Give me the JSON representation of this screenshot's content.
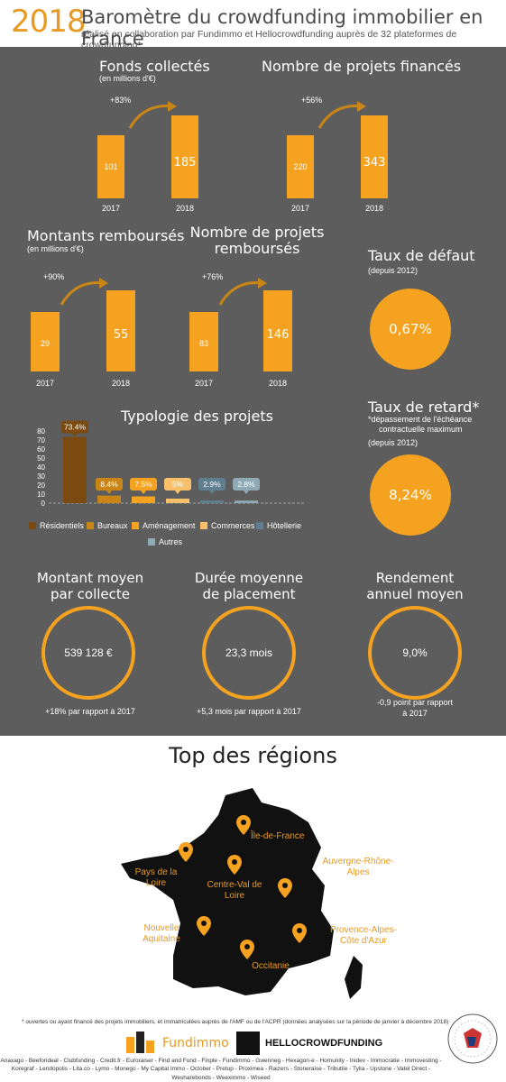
{
  "header": {
    "year": "2018",
    "title": "Baromètre du crowdfunding immobilier en France",
    "subtitle": "réalisé en collaboration par Fundimmo et Hellocrowdfunding auprès de 32 plateformes de crowdfunding*"
  },
  "funds": {
    "title": "Fonds collectés",
    "unit": "(en millions d'€)",
    "growth": "+83%",
    "bars": [
      {
        "year": "2017",
        "value": 101,
        "label": "101"
      },
      {
        "year": "2018",
        "value": 185,
        "label": "185"
      }
    ]
  },
  "projects": {
    "title": "Nombre de projets financés",
    "growth": "+56%",
    "bars": [
      {
        "year": "2017",
        "value": 220,
        "label": "220"
      },
      {
        "year": "2018",
        "value": 343,
        "label": "343"
      }
    ]
  },
  "repaid_amount": {
    "title": "Montants remboursés",
    "unit": "(en millions d'€)",
    "growth": "+90%",
    "bars": [
      {
        "year": "2017",
        "value": 29,
        "label": "29"
      },
      {
        "year": "2018",
        "value": 55,
        "label": "55"
      }
    ]
  },
  "repaid_projects": {
    "title_line1": "Nombre de projets",
    "title_line2": "remboursés",
    "growth": "+76%",
    "bars": [
      {
        "year": "2017",
        "value": 83,
        "label": "83"
      },
      {
        "year": "2018",
        "value": 146,
        "label": "146"
      }
    ]
  },
  "default_rate": {
    "title": "Taux de défaut",
    "since": "(depuis 2012)",
    "value": "0,67%"
  },
  "delay_rate": {
    "title": "Taux de retard*",
    "note_line1": "*dépassement de l'échéance",
    "note_line2": "contractuelle maximum",
    "since": "(depuis 2012)",
    "value": "8,24%"
  },
  "chart_data": {
    "type": "bar",
    "title": "Typologie des projets",
    "categories": [
      "Résidentiels",
      "Bureaux",
      "Aménagement",
      "Commerces",
      "Hôtellerie",
      "Autres"
    ],
    "values": [
      73.4,
      8.4,
      7.5,
      5,
      2.9,
      2.8
    ],
    "value_labels": [
      "73.4%",
      "8.4%",
      "7.5%",
      "5%",
      "2.9%",
      "2.8%"
    ],
    "colors": [
      "#7a4a10",
      "#c98516",
      "#f4a21f",
      "#f8c06a",
      "#5f7f8f",
      "#8fa9b5"
    ],
    "ylim": [
      0,
      80
    ],
    "yticks": [
      "0",
      "10",
      "20",
      "30",
      "40",
      "50",
      "60",
      "70",
      "80"
    ],
    "legend": "bottom"
  },
  "averages": [
    {
      "title_line1": "Montant moyen",
      "title_line2": "par collecte",
      "value": "539 128 €",
      "delta_line1": "+18% par rapport à 2017",
      "delta_line2": ""
    },
    {
      "title_line1": "Durée moyenne",
      "title_line2": "de placement",
      "value": "23,3 mois",
      "delta_line1": "+5,3 mois par rapport à 2017",
      "delta_line2": ""
    },
    {
      "title_line1": "Rendement",
      "title_line2": "annuel moyen",
      "value": "9,0%",
      "delta_line1": "-0,9 point par rapport",
      "delta_line2": "à 2017"
    }
  ],
  "regions": {
    "title": "Top des régions",
    "items": [
      {
        "line1": "Île-de-France",
        "line2": ""
      },
      {
        "line1": "Pays de la",
        "line2": "Loire"
      },
      {
        "line1": "Centre-Val de",
        "line2": "Loire"
      },
      {
        "line1": "Auvergne-Rhône-",
        "line2": "Alpes"
      },
      {
        "line1": "Nouvelle",
        "line2": "Aquitaine"
      },
      {
        "line1": "Provence-Alpes-",
        "line2": "Côte d'Azur"
      },
      {
        "line1": "Occitanie",
        "line2": ""
      }
    ]
  },
  "footer": {
    "note": "* ouvertes ou ayant financé des projets immobiliers, et immatriculées auprès de l'AMF ou de l'ACPR (données analysées sur la période de janvier à décembre 2018)",
    "logo1": "Fundimmo",
    "logo2": "HELLOCROWDFUNDING",
    "platforms_line1": "Anaxago - Beeforideal - Clubfunding - Credit.fr - Euroraiser - Find and Fund - Finple - Fundimmo - Gwenneg - Hexagon-e - Homunity - Inidev - Immocratie - Immovesting -",
    "platforms_line2": "Koregraf - Lendopolis - Lita.co - Lymo - Monego - My Capital Immo - October - Pretup - Proximea - Raizers - Stoneraise - Tributile - Tylia - Upstone - Vatel Direct -",
    "platforms_line3": "Wesharebonds - Weeximmo - Wiseed",
    "colors": {
      "accent": "#f4a21f",
      "panel": "#5d5d5d"
    }
  }
}
